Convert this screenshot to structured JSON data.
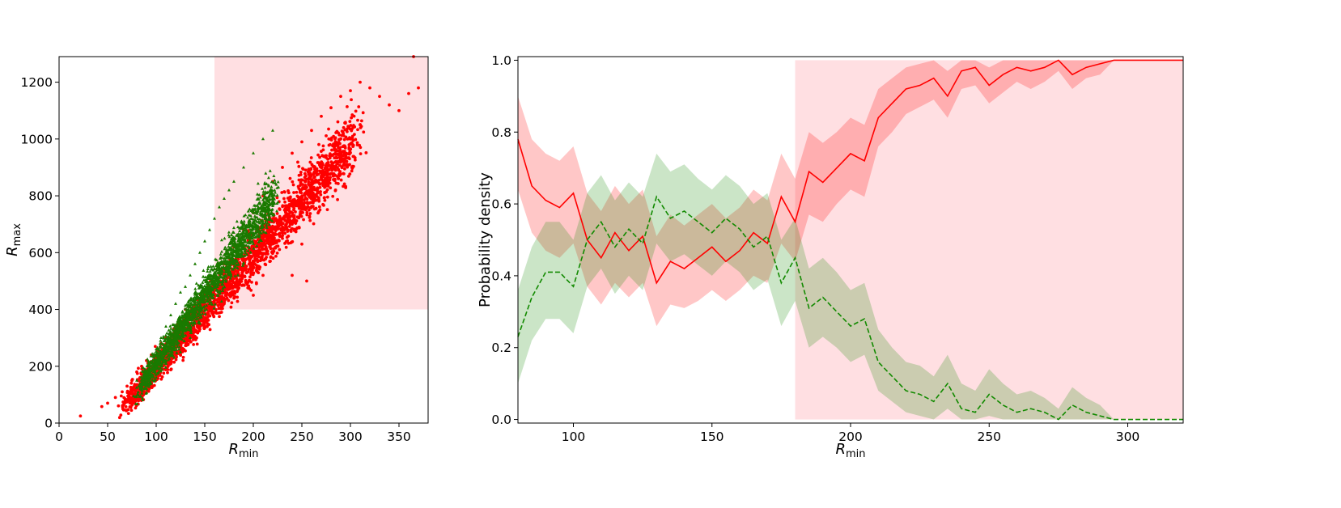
{
  "chart_data": [
    {
      "type": "scatter",
      "xlabel": "R",
      "xlabel_sub": "min",
      "ylabel": "R",
      "ylabel_sub": "max",
      "xlim": [
        0,
        380
      ],
      "ylim": [
        0,
        1290
      ],
      "xticks": [
        0,
        50,
        100,
        150,
        200,
        250,
        300,
        350
      ],
      "yticks": [
        0,
        200,
        400,
        600,
        800,
        1000,
        1200
      ],
      "highlight_region": {
        "x": [
          160,
          380
        ],
        "y": [
          400,
          1290
        ],
        "color": "#ffc0c5"
      },
      "series": [
        {
          "name": "red",
          "color": "#ff0000",
          "marker": "circle",
          "points": [
            [
              22,
              25
            ],
            [
              44,
              58
            ],
            [
              50,
              70
            ],
            [
              58,
              90
            ],
            [
              65,
              110
            ],
            [
              70,
              130
            ],
            [
              75,
              150
            ],
            [
              80,
              180
            ],
            [
              85,
              200
            ],
            [
              90,
              220
            ],
            [
              95,
              240
            ],
            [
              100,
              200
            ],
            [
              105,
              280
            ],
            [
              110,
              300
            ],
            [
              118,
              330
            ],
            [
              125,
              360
            ],
            [
              130,
              400
            ],
            [
              140,
              420
            ],
            [
              150,
              450
            ],
            [
              160,
              500
            ],
            [
              170,
              560
            ],
            [
              180,
              620
            ],
            [
              190,
              680
            ],
            [
              200,
              740
            ],
            [
              210,
              800
            ],
            [
              220,
              850
            ],
            [
              230,
              900
            ],
            [
              240,
              950
            ],
            [
              250,
              990
            ],
            [
              260,
              1030
            ],
            [
              270,
              1080
            ],
            [
              280,
              1110
            ],
            [
              290,
              1150
            ],
            [
              300,
              1170
            ],
            [
              310,
              1200
            ],
            [
              320,
              1180
            ],
            [
              330,
              1150
            ],
            [
              340,
              1120
            ],
            [
              350,
              1100
            ],
            [
              360,
              1160
            ],
            [
              365,
              1290
            ],
            [
              370,
              1180
            ],
            [
              200,
              450
            ],
            [
              210,
              520
            ],
            [
              220,
              600
            ],
            [
              230,
              650
            ],
            [
              240,
              700
            ],
            [
              250,
              760
            ],
            [
              260,
              830
            ],
            [
              270,
              870
            ],
            [
              280,
              900
            ],
            [
              290,
              950
            ],
            [
              300,
              1000
            ],
            [
              310,
              1050
            ],
            [
              255,
              500
            ],
            [
              240,
              520
            ],
            [
              250,
              630
            ]
          ]
        },
        {
          "name": "green",
          "color": "#1a7a00",
          "marker": "triangle",
          "points": [
            [
              80,
              150
            ],
            [
              90,
              180
            ],
            [
              95,
              210
            ],
            [
              100,
              260
            ],
            [
              105,
              300
            ],
            [
              110,
              340
            ],
            [
              115,
              380
            ],
            [
              120,
              420
            ],
            [
              125,
              460
            ],
            [
              130,
              480
            ],
            [
              135,
              520
            ],
            [
              140,
              560
            ],
            [
              145,
              600
            ],
            [
              150,
              640
            ],
            [
              155,
              680
            ],
            [
              160,
              720
            ],
            [
              165,
              760
            ],
            [
              170,
              790
            ],
            [
              175,
              820
            ],
            [
              180,
              850
            ],
            [
              190,
              900
            ],
            [
              200,
              950
            ],
            [
              210,
              1000
            ],
            [
              220,
              1030
            ],
            [
              125,
              250
            ],
            [
              135,
              300
            ],
            [
              145,
              350
            ],
            [
              155,
              420
            ],
            [
              160,
              500
            ],
            [
              170,
              580
            ]
          ]
        }
      ]
    },
    {
      "type": "line",
      "xlabel": "R",
      "xlabel_sub": "min",
      "ylabel": "Probability density",
      "xlim": [
        80,
        320
      ],
      "ylim": [
        -0.01,
        1.01
      ],
      "xticks": [
        100,
        150,
        200,
        250,
        300
      ],
      "yticks": [
        0.0,
        0.2,
        0.4,
        0.6,
        0.8,
        1.0
      ],
      "ytick_labels": [
        "0.0",
        "0.2",
        "0.4",
        "0.6",
        "0.8",
        "1.0"
      ],
      "highlight_region": {
        "x": [
          180,
          320
        ],
        "y": [
          0.0,
          1.0
        ],
        "color": "#ffc0c5"
      },
      "x": [
        80,
        85,
        90,
        95,
        100,
        105,
        110,
        115,
        120,
        125,
        130,
        135,
        140,
        145,
        150,
        155,
        160,
        165,
        170,
        175,
        180,
        185,
        190,
        195,
        200,
        205,
        210,
        215,
        220,
        225,
        230,
        235,
        240,
        245,
        250,
        255,
        260,
        265,
        270,
        275,
        280,
        285,
        290,
        295,
        300,
        305,
        310,
        315,
        320
      ],
      "series": [
        {
          "name": "red",
          "color": "#ff0000",
          "linestyle": "solid",
          "values": [
            0.78,
            0.65,
            0.61,
            0.59,
            0.63,
            0.5,
            0.45,
            0.52,
            0.47,
            0.51,
            0.38,
            0.44,
            0.42,
            0.45,
            0.48,
            0.44,
            0.47,
            0.52,
            0.49,
            0.62,
            0.55,
            0.69,
            0.66,
            0.7,
            0.74,
            0.72,
            0.84,
            0.88,
            0.92,
            0.93,
            0.95,
            0.9,
            0.97,
            0.98,
            0.93,
            0.96,
            0.98,
            0.97,
            0.98,
            1.0,
            0.96,
            0.98,
            0.99,
            1.0,
            1.0,
            1.0,
            1.0,
            1.0,
            1.0
          ],
          "band_lower": [
            0.64,
            0.52,
            0.47,
            0.45,
            0.49,
            0.37,
            0.32,
            0.38,
            0.34,
            0.38,
            0.26,
            0.32,
            0.31,
            0.33,
            0.36,
            0.33,
            0.36,
            0.4,
            0.38,
            0.49,
            0.44,
            0.57,
            0.55,
            0.6,
            0.64,
            0.62,
            0.76,
            0.8,
            0.85,
            0.87,
            0.89,
            0.84,
            0.92,
            0.93,
            0.88,
            0.91,
            0.94,
            0.92,
            0.94,
            0.97,
            0.92,
            0.95,
            0.96,
            1.0,
            1.0,
            1.0,
            1.0,
            1.0,
            1.0
          ],
          "band_upper": [
            0.9,
            0.78,
            0.74,
            0.72,
            0.76,
            0.63,
            0.58,
            0.65,
            0.6,
            0.64,
            0.51,
            0.57,
            0.54,
            0.57,
            0.6,
            0.56,
            0.59,
            0.64,
            0.61,
            0.74,
            0.67,
            0.8,
            0.77,
            0.8,
            0.84,
            0.82,
            0.92,
            0.95,
            0.98,
            0.99,
            1.0,
            0.97,
            1.0,
            1.0,
            0.98,
            1.0,
            1.0,
            1.0,
            1.0,
            1.0,
            1.0,
            1.0,
            1.0,
            1.0,
            1.0,
            1.0,
            1.0,
            1.0,
            1.0
          ]
        },
        {
          "name": "green",
          "color": "#128a00",
          "linestyle": "dashed",
          "values": [
            0.23,
            0.34,
            0.41,
            0.41,
            0.37,
            0.5,
            0.55,
            0.48,
            0.53,
            0.49,
            0.62,
            0.56,
            0.58,
            0.55,
            0.52,
            0.56,
            0.53,
            0.48,
            0.51,
            0.38,
            0.45,
            0.31,
            0.34,
            0.3,
            0.26,
            0.28,
            0.16,
            0.12,
            0.08,
            0.07,
            0.05,
            0.1,
            0.03,
            0.02,
            0.07,
            0.04,
            0.02,
            0.03,
            0.02,
            0.0,
            0.04,
            0.02,
            0.01,
            0.0,
            0.0,
            0.0,
            0.0,
            0.0,
            0.0
          ],
          "band_lower": [
            0.1,
            0.22,
            0.28,
            0.28,
            0.24,
            0.37,
            0.42,
            0.35,
            0.4,
            0.36,
            0.49,
            0.44,
            0.46,
            0.43,
            0.4,
            0.44,
            0.41,
            0.36,
            0.39,
            0.26,
            0.33,
            0.2,
            0.23,
            0.2,
            0.16,
            0.18,
            0.08,
            0.05,
            0.02,
            0.01,
            0.0,
            0.03,
            0.0,
            0.0,
            0.01,
            0.0,
            0.0,
            0.0,
            0.0,
            0.0,
            0.0,
            0.0,
            0.0,
            0.0,
            0.0,
            0.0,
            0.0,
            0.0,
            0.0
          ],
          "band_upper": [
            0.36,
            0.48,
            0.55,
            0.55,
            0.5,
            0.63,
            0.68,
            0.61,
            0.66,
            0.62,
            0.74,
            0.69,
            0.71,
            0.67,
            0.64,
            0.68,
            0.65,
            0.6,
            0.63,
            0.5,
            0.56,
            0.42,
            0.45,
            0.41,
            0.36,
            0.38,
            0.25,
            0.2,
            0.16,
            0.15,
            0.12,
            0.18,
            0.1,
            0.08,
            0.14,
            0.1,
            0.07,
            0.08,
            0.06,
            0.03,
            0.09,
            0.06,
            0.04,
            0.0,
            0.0,
            0.0,
            0.0,
            0.0,
            0.0
          ]
        }
      ]
    }
  ]
}
